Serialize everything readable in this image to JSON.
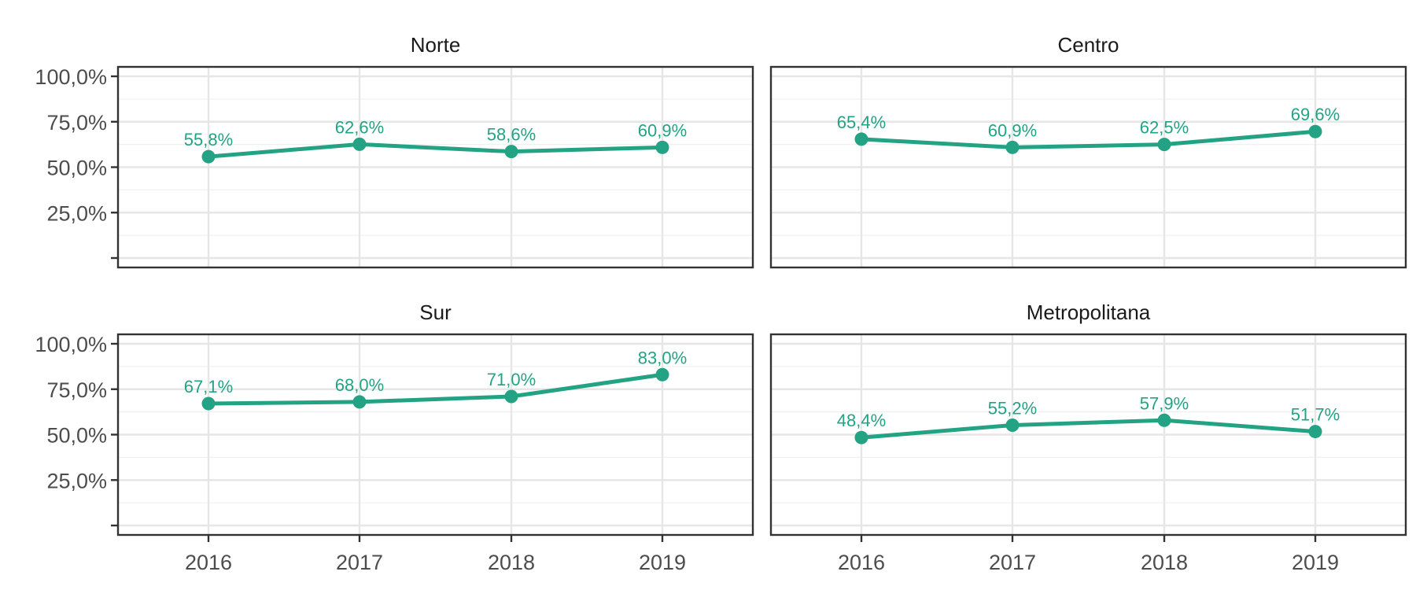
{
  "chart_data": {
    "type": "line",
    "layout": "facet-2x2",
    "x": [
      "2016",
      "2017",
      "2018",
      "2019"
    ],
    "ylim": [
      0,
      1
    ],
    "y_ticks": [
      0.25,
      0.5,
      0.75,
      1.0
    ],
    "y_tick_labels": [
      "25,0%",
      "50,0%",
      "75,0%",
      "100,0%"
    ],
    "grid": true,
    "line_color": "#23A383",
    "panels": [
      {
        "title": "Norte",
        "values": [
          0.558,
          0.626,
          0.586,
          0.609
        ],
        "labels": [
          "55,8%",
          "62,6%",
          "58,6%",
          "60,9%"
        ]
      },
      {
        "title": "Centro",
        "values": [
          0.654,
          0.609,
          0.625,
          0.696
        ],
        "labels": [
          "65,4%",
          "60,9%",
          "62,5%",
          "69,6%"
        ]
      },
      {
        "title": "Sur",
        "values": [
          0.671,
          0.68,
          0.71,
          0.83
        ],
        "labels": [
          "67,1%",
          "68,0%",
          "71,0%",
          "83,0%"
        ]
      },
      {
        "title": "Metropolitana",
        "values": [
          0.484,
          0.552,
          0.579,
          0.517
        ],
        "labels": [
          "48,4%",
          "55,2%",
          "57,9%",
          "51,7%"
        ]
      }
    ]
  }
}
